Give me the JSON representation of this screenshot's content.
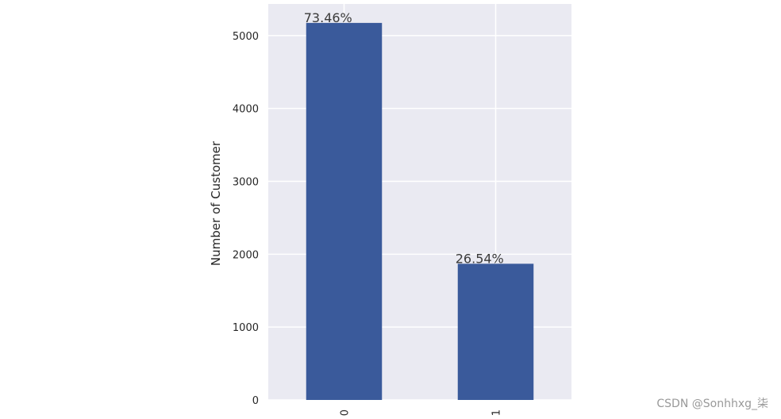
{
  "chart_data": {
    "type": "bar",
    "categories": [
      "0",
      "1"
    ],
    "values": [
      5174,
      1869
    ],
    "data_labels": [
      "73.46%",
      "26.54%"
    ],
    "title": "",
    "xlabel": "",
    "ylabel": "Number of Customer",
    "ylim": [
      0,
      5434
    ],
    "yticks": [
      0,
      1000,
      2000,
      3000,
      4000,
      5000
    ],
    "grid": true,
    "legend": "none",
    "colors": {
      "bar": "#3a5a9b",
      "plot_background": "#eaeaf2",
      "grid": "#ffffff"
    }
  },
  "watermark": "CSDN @Sonhhxg_柒"
}
